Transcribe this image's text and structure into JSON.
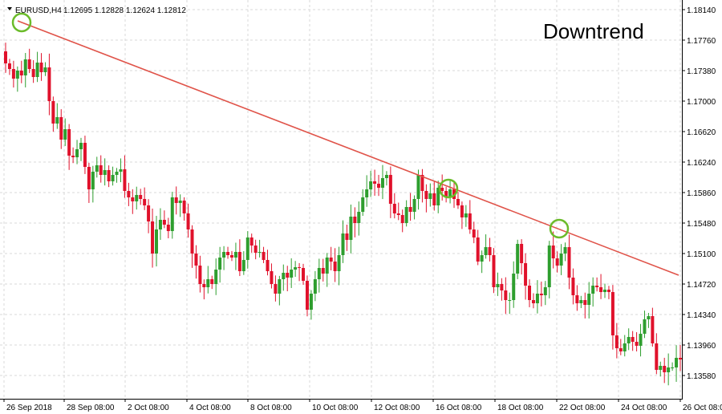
{
  "header": {
    "symbol": "EURUSD,H4",
    "ohlc": "1.12695 1.12828 1.12624 1.12812"
  },
  "chart_data": {
    "type": "candlestick",
    "title": "",
    "annotation": "Downtrend",
    "grid": true,
    "colors": {
      "up": "#2e9e2e",
      "down": "#e0112b",
      "trendline": "#e0544a",
      "touch_marker": "#6bbb2a",
      "grid": "#d9d9d9"
    },
    "y_ticks": [
      "1.18140",
      "1.17760",
      "1.17380",
      "1.17000",
      "1.16620",
      "1.16240",
      "1.15860",
      "1.15480",
      "1.15100",
      "1.14720",
      "1.14340",
      "1.13960",
      "1.13580"
    ],
    "ylim": [
      1.1338,
      1.182
    ],
    "x_ticks": [
      "26 Sep 2018",
      "28 Sep 08:00",
      "2 Oct 08:00",
      "4 Oct 08:00",
      "8 Oct 08:00",
      "10 Oct 08:00",
      "12 Oct 08:00",
      "16 Oct 08:00",
      "18 Oct 08:00",
      "22 Oct 08:00",
      "24 Oct 08:00",
      "26 Oct 08:00"
    ],
    "closes": [
      1.1747,
      1.174,
      1.1728,
      1.1738,
      1.1732,
      1.1752,
      1.174,
      1.173,
      1.1748,
      1.1736,
      1.1742,
      1.17,
      1.1672,
      1.168,
      1.1652,
      1.1665,
      1.1632,
      1.163,
      1.164,
      1.1648,
      1.1618,
      1.159,
      1.1612,
      1.162,
      1.1608,
      1.1614,
      1.16,
      1.1608,
      1.1612,
      1.1615,
      1.1588,
      1.158,
      1.1575,
      1.1583,
      1.1578,
      1.157,
      1.155,
      1.151,
      1.154,
      1.1552,
      1.1546,
      1.1538,
      1.158,
      1.1573,
      1.1576,
      1.156,
      1.154,
      1.151,
      1.1495,
      1.1472,
      1.1468,
      1.1478,
      1.1472,
      1.149,
      1.1505,
      1.1512,
      1.1508,
      1.1505,
      1.1512,
      1.1488,
      1.1502,
      1.153,
      1.152,
      1.1511,
      1.1512,
      1.1502,
      1.1488,
      1.1472,
      1.146,
      1.1478,
      1.1486,
      1.148,
      1.149,
      1.1493,
      1.1492,
      1.1476,
      1.144,
      1.146,
      1.1478,
      1.1492,
      1.1485,
      1.1505,
      1.15,
      1.1488,
      1.1508,
      1.1535,
      1.1527,
      1.1556,
      1.1548,
      1.1562,
      1.158,
      1.159,
      1.16,
      1.1597,
      1.1592,
      1.1604,
      1.1608,
      1.1572,
      1.156,
      1.1558,
      1.1548,
      1.1568,
      1.1562,
      1.1578,
      1.1608,
      1.1588,
      1.1578,
      1.1585,
      1.157,
      1.1592,
      1.1588,
      1.158,
      1.159,
      1.1578,
      1.157,
      1.1555,
      1.156,
      1.154,
      1.153,
      1.15,
      1.1508,
      1.1518,
      1.1508,
      1.1468,
      1.1472,
      1.1464,
      1.1452,
      1.1452,
      1.1485,
      1.1522,
      1.1498,
      1.147,
      1.1452,
      1.1448,
      1.146,
      1.1458,
      1.1468,
      1.152,
      1.1504,
      1.1495,
      1.151,
      1.1518,
      1.148,
      1.1458,
      1.1448,
      1.1452,
      1.1446,
      1.146,
      1.147,
      1.1468,
      1.1462,
      1.1465,
      1.1462,
      1.1408,
      1.1392,
      1.1388,
      1.1398,
      1.1406,
      1.14,
      1.1395,
      1.141,
      1.1428,
      1.1432,
      1.1398,
      1.1365,
      1.137,
      1.1362,
      1.1368,
      1.1368,
      1.138,
      1.1378
    ]
  }
}
